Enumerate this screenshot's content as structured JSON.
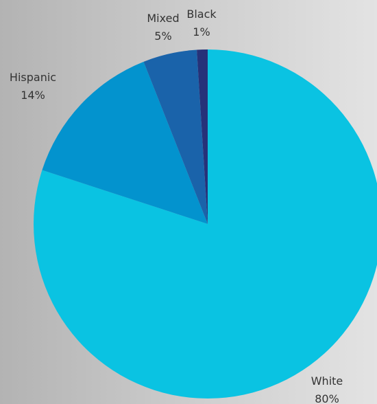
{
  "chart_data": {
    "type": "pie",
    "slices": [
      {
        "label": "White",
        "pct_label": "80%",
        "value": 80,
        "color": "#0ac3e2"
      },
      {
        "label": "Hispanic",
        "pct_label": "14%",
        "value": 14,
        "color": "#0393ce"
      },
      {
        "label": "Mixed",
        "pct_label": "5%",
        "value": 5,
        "color": "#1a63aa"
      },
      {
        "label": "Black",
        "pct_label": "1%",
        "value": 1,
        "color": "#263279"
      }
    ],
    "start": "12 o'clock",
    "direction": "clockwise",
    "legend": "none"
  }
}
